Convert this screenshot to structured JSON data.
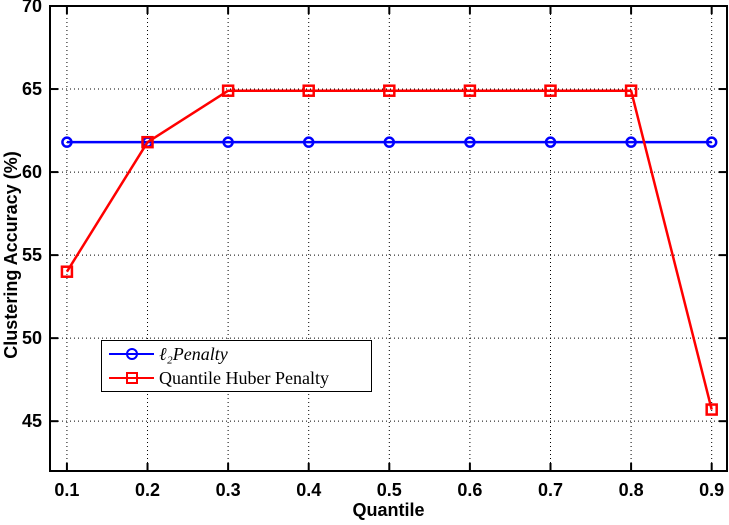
{
  "figure": {
    "background": "#ffffff"
  },
  "chart_data": {
    "type": "line",
    "title": "",
    "xlabel": "Quantile",
    "ylabel": "Clustering Accuracy (%)",
    "x": [
      0.1,
      0.2,
      0.3,
      0.4,
      0.5,
      0.6,
      0.7,
      0.8,
      0.9
    ],
    "series": [
      {
        "name": "ℓ₂Penalty",
        "name_style": "italic",
        "color": "#0000ff",
        "marker": "circle",
        "values": [
          61.8,
          61.8,
          61.8,
          61.8,
          61.8,
          61.8,
          61.8,
          61.8,
          61.8
        ]
      },
      {
        "name": "Quantile Huber Penalty",
        "name_style": "normal",
        "color": "#ff0000",
        "marker": "square",
        "values": [
          54.0,
          61.8,
          64.9,
          64.9,
          64.9,
          64.9,
          64.9,
          64.9,
          45.7
        ]
      }
    ],
    "xlim": [
      0.079,
      0.919
    ],
    "ylim": [
      42,
      70
    ],
    "xticks": [
      0.1,
      0.2,
      0.3,
      0.4,
      0.5,
      0.6,
      0.7,
      0.8,
      0.9
    ],
    "xtick_labels": [
      "0.1",
      "0.2",
      "0.3",
      "0.4",
      "0.5",
      "0.6",
      "0.7",
      "0.8",
      "0.9"
    ],
    "yticks": [
      45,
      50,
      55,
      60,
      65,
      70
    ],
    "ytick_labels": [
      "45",
      "50",
      "55",
      "60",
      "65",
      "70"
    ],
    "grid": "dotted",
    "grid_color": "#000000",
    "axis_color": "#000000",
    "legend_position": "left-middle"
  }
}
